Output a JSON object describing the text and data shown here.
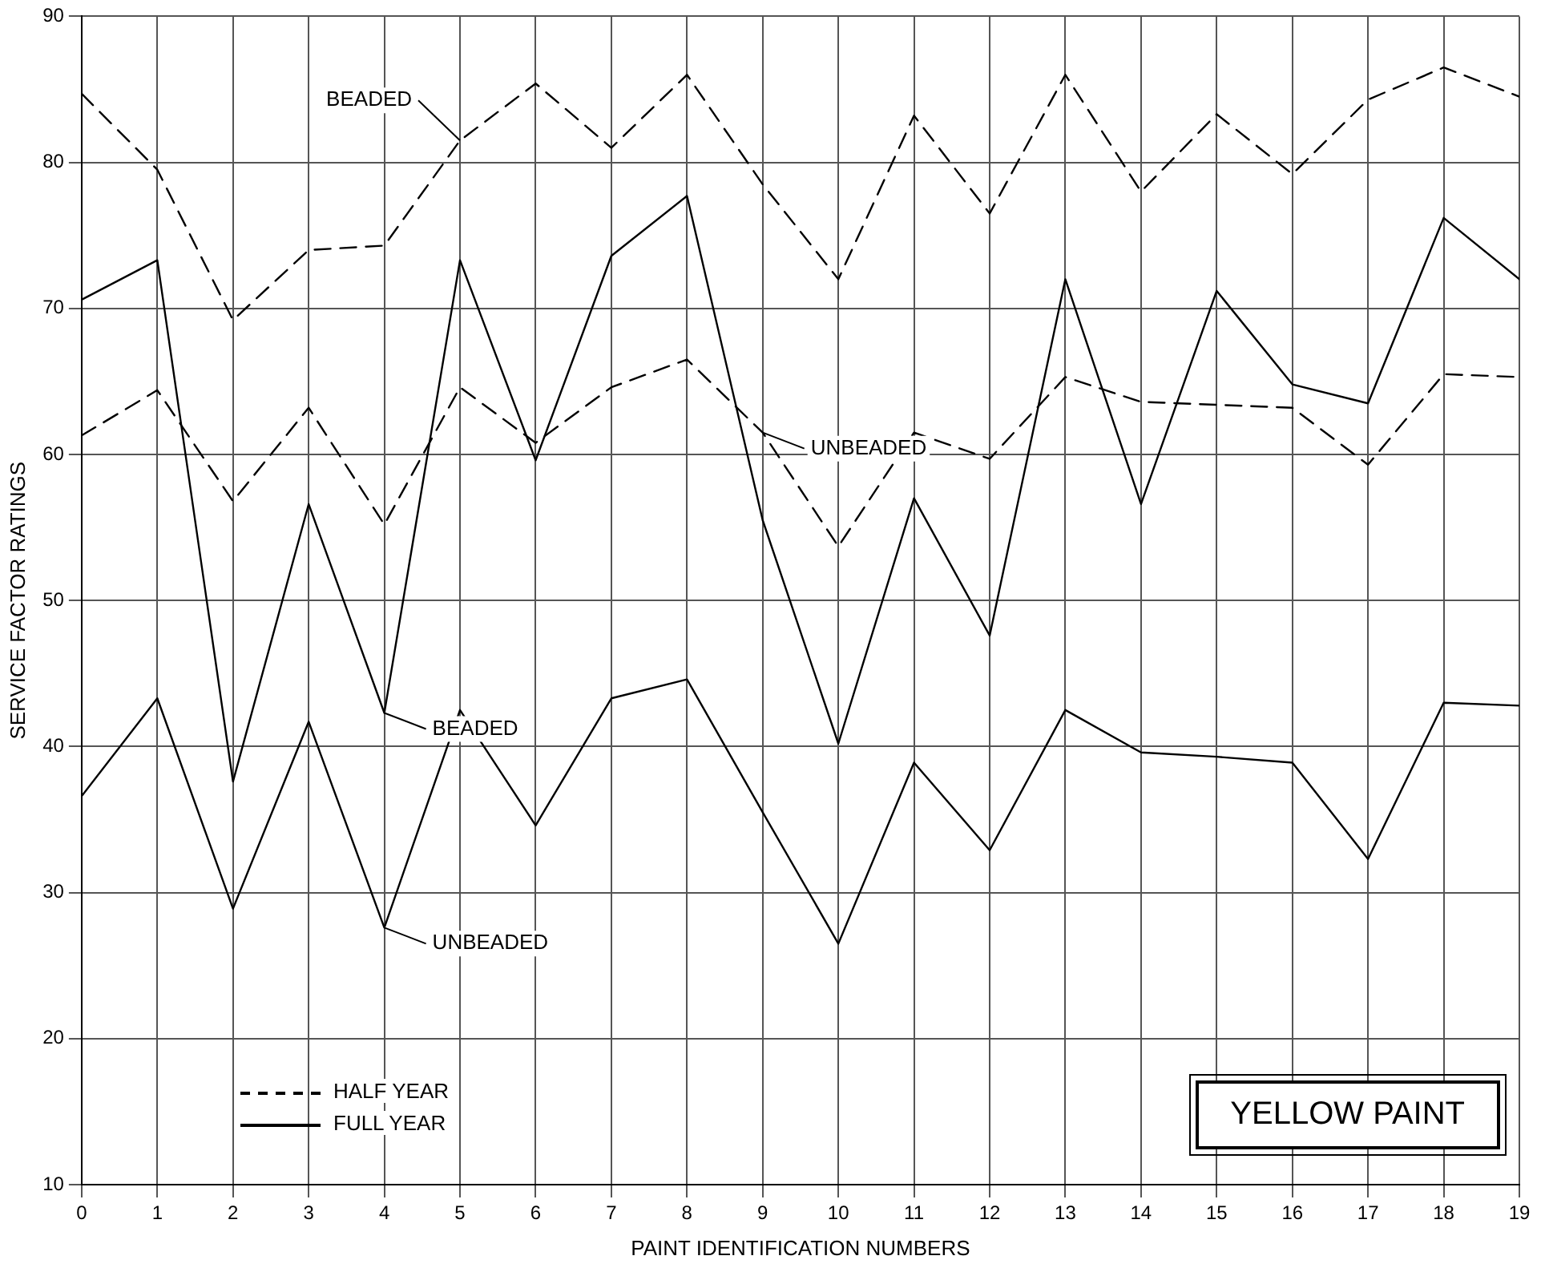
{
  "chart_data": {
    "type": "line",
    "title": "YELLOW PAINT",
    "xlabel": "PAINT IDENTIFICATION NUMBERS",
    "ylabel": "SERVICE FACTOR RATINGS",
    "x": [
      0,
      1,
      2,
      3,
      4,
      5,
      6,
      7,
      8,
      9,
      10,
      11,
      12,
      13,
      14,
      15,
      16,
      17,
      18,
      19
    ],
    "xlim": [
      0,
      19
    ],
    "xticks": [
      0,
      1,
      2,
      3,
      4,
      5,
      6,
      7,
      8,
      9,
      10,
      11,
      12,
      13,
      14,
      15,
      16,
      17,
      18,
      19
    ],
    "series": [
      {
        "color": "#000000",
        "line_style": "dashed",
        "values": [
          84.7,
          79.5,
          69.2,
          74,
          74.3,
          81.5,
          85.4,
          81,
          86,
          78.5,
          72,
          83.2,
          76.5,
          86,
          78,
          83.3,
          79.2,
          84.3,
          86.5,
          84.5
        ]
      },
      {
        "color": "#000000",
        "line_style": "dashed",
        "values": [
          61.3,
          64.4,
          56.8,
          63.2,
          55.2,
          64.6,
          60.8,
          64.6,
          66.5,
          61.5,
          53.7,
          61.5,
          59.7,
          65.3,
          63.6,
          63.4,
          63.2,
          59.3,
          65.5,
          65.3
        ]
      },
      {
        "color": "#000000",
        "line_style": "solid",
        "values": [
          70.6,
          73.3,
          37.6,
          56.6,
          42.3,
          73.3,
          59.6,
          73.6,
          77.7,
          55.5,
          40.2,
          57,
          47.6,
          72,
          56.6,
          71.2,
          64.8,
          63.5,
          76.2,
          72
        ]
      },
      {
        "color": "#000000",
        "line_style": "solid",
        "values": [
          36.6,
          43.3,
          28.9,
          41.7,
          27.6,
          42.5,
          34.6,
          43.3,
          44.6,
          35.5,
          26.5,
          38.9,
          32.9,
          42.5,
          39.6,
          39.3,
          38.9,
          32.3,
          43,
          42.8
        ]
      }
    ],
    "annotations": [
      {
        "text": "BEADED",
        "x": 5,
        "y": 81.5
      },
      {
        "text": "UNBEADED",
        "x": 9,
        "y": 61.5
      },
      {
        "text": "BEADED",
        "x": 4,
        "y": 42.3
      },
      {
        "text": "UNBEADED",
        "x": 4,
        "y": 27.6
      },
      "HALF YEAR",
      "FULL YEAR"
    ],
    "ylim": [
      10,
      90
    ],
    "yticks": [
      10,
      20,
      30,
      40,
      50,
      60,
      70,
      80,
      90
    ],
    "grid": true,
    "marker": "none"
  }
}
